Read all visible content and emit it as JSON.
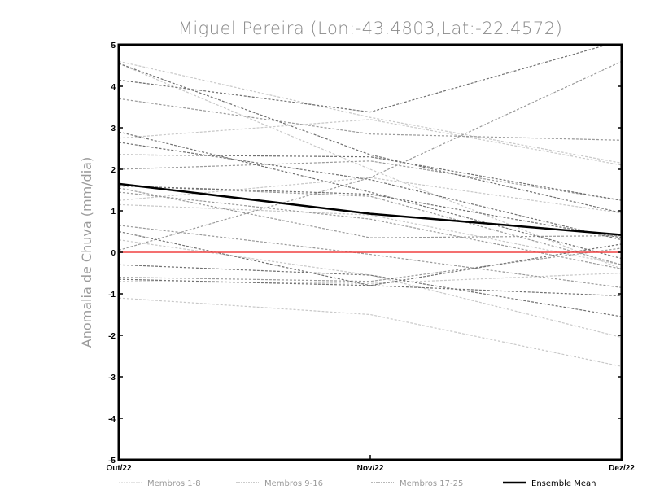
{
  "chart_data": {
    "type": "line",
    "title": "Miguel Pereira (Lon:-43.4803,Lat:-22.4572)",
    "xlabel": "",
    "ylabel": "Anomalia de Chuva (mm/dia)",
    "categories": [
      "Out/22",
      "Nov/22",
      "Dez/22"
    ],
    "ylim": [
      -5,
      5
    ],
    "yticks": [
      5,
      4,
      3,
      2,
      1,
      0,
      -1,
      -2,
      -3,
      -4,
      -5
    ],
    "ytick_labels": [
      "5",
      "4",
      "3",
      "2",
      "1",
      "0",
      "-1",
      "-2",
      "-3",
      "-4",
      "-5"
    ],
    "grid": false,
    "legend_position": "bottom",
    "reference_line": {
      "y": 0,
      "color": "#f04040"
    },
    "groups": [
      {
        "name": "Membros 1-8",
        "color": "#c8c8c8",
        "series": [
          [
            4.6,
            3.25,
            2.15
          ],
          [
            4.55,
            2.0,
            -0.4
          ],
          [
            2.75,
            3.2,
            2.1
          ],
          [
            1.25,
            1.8,
            0.95
          ],
          [
            1.15,
            0.9,
            -0.3
          ],
          [
            0.3,
            -0.55,
            -2.05
          ],
          [
            -0.7,
            -0.75,
            -0.5
          ],
          [
            -1.1,
            -1.5,
            -2.75
          ]
        ]
      },
      {
        "name": "Membros 9-16",
        "color": "#9a9a9a",
        "series": [
          [
            0.05,
            1.8,
            4.6
          ],
          [
            3.7,
            2.85,
            2.7
          ],
          [
            2.0,
            2.2,
            1.25
          ],
          [
            1.6,
            1.35,
            -0.3
          ],
          [
            1.45,
            0.8,
            -0.4
          ],
          [
            0.65,
            -0.05,
            -0.85
          ],
          [
            -0.6,
            -0.7,
            0.1
          ],
          [
            1.55,
            0.35,
            0.4
          ]
        ]
      },
      {
        "name": "Membros 17-25",
        "color": "#707070",
        "series": [
          [
            4.15,
            3.38,
            5.1
          ],
          [
            4.55,
            2.35,
            0.95
          ],
          [
            2.9,
            1.45,
            -0.15
          ],
          [
            2.65,
            1.75,
            0.3
          ],
          [
            2.35,
            2.3,
            1.25
          ],
          [
            1.6,
            1.4,
            0.35
          ],
          [
            0.5,
            -0.8,
            -1.05
          ],
          [
            -0.3,
            -0.55,
            -1.55
          ],
          [
            -0.65,
            -0.8,
            0.2
          ]
        ]
      }
    ],
    "ensemble_mean": {
      "name": "Ensemble Mean",
      "color": "#000000",
      "values": [
        1.65,
        0.93,
        0.42
      ]
    }
  }
}
